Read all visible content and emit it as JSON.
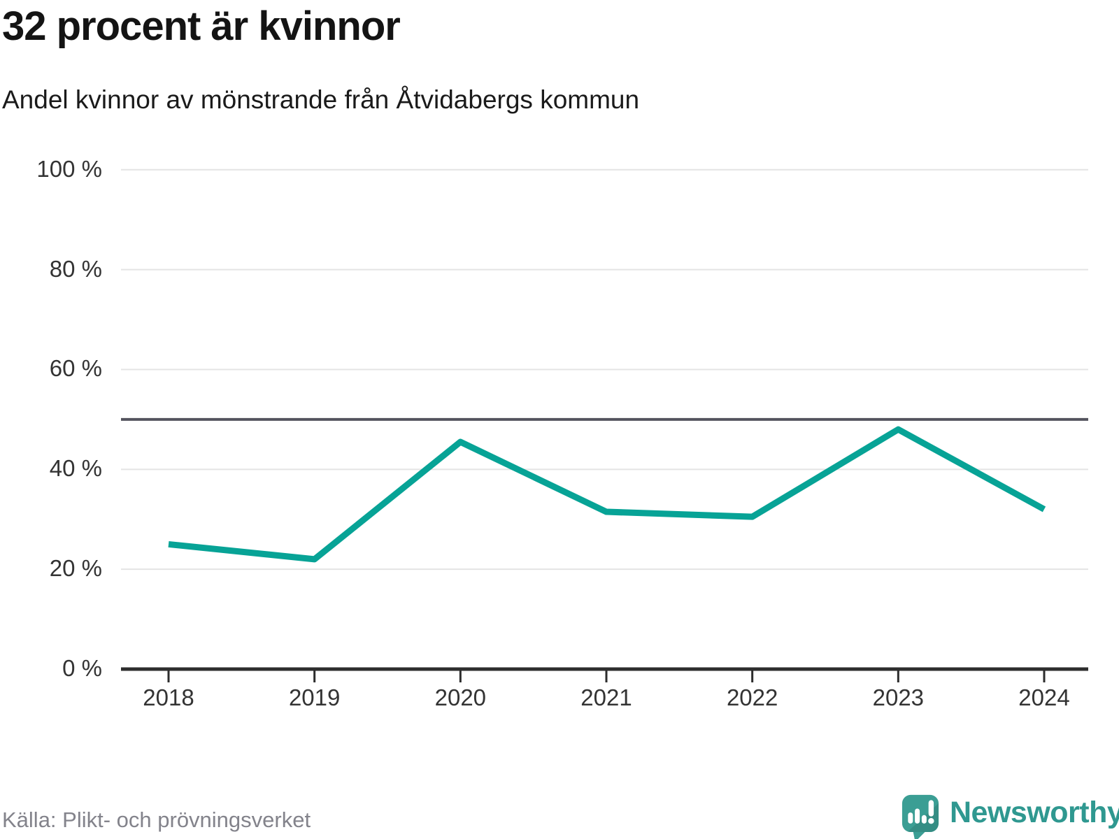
{
  "header": {
    "title": "32 procent är kvinnor",
    "subtitle": "Andel kvinnor av mönstrande från Åtvidabergs kommun"
  },
  "footer": {
    "source": "Källa: Plikt- och prövningsverket",
    "brand": "Newsworthy"
  },
  "chart_data": {
    "type": "line",
    "title": "32 procent är kvinnor",
    "subtitle": "Andel kvinnor av mönstrande från Åtvidabergs kommun",
    "categories": [
      "2018",
      "2019",
      "2020",
      "2021",
      "2022",
      "2023",
      "2024"
    ],
    "series": [
      {
        "name": "Andel kvinnor av mönstrande",
        "values": [
          25,
          22,
          45.5,
          31.5,
          30.5,
          48,
          32
        ]
      }
    ],
    "xlabel": "",
    "ylabel": "",
    "ylim": [
      0,
      100
    ],
    "y_ticks": [
      0,
      20,
      40,
      60,
      80,
      100
    ],
    "y_tick_labels": [
      "0 %",
      "20 %",
      "40 %",
      "60 %",
      "80 %",
      "100 %"
    ],
    "reference_line": 50,
    "grid": true,
    "legend": false,
    "colors": {
      "line": "#07a396",
      "grid": "#e4e4e4",
      "reference": "#54545e",
      "axis": "#2d2d2d",
      "tick_text": "#333333",
      "brand_teal": "#3b9e94"
    }
  }
}
